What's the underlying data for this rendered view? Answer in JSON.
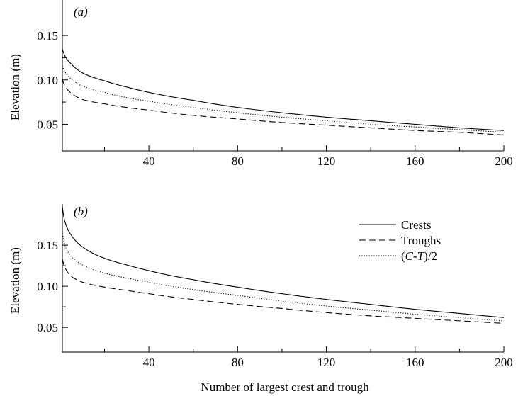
{
  "figure": {
    "xlabel": "Number of largest crest and trough"
  },
  "chart_data": [
    {
      "type": "line",
      "panel_label": "(a)",
      "ylabel": "Elevation (m)",
      "xlabel": "",
      "xlim": [
        1,
        200
      ],
      "ylim": [
        0.02,
        0.19
      ],
      "xticks": [
        40,
        80,
        120,
        160,
        200
      ],
      "xtick_labels": [
        "40",
        "80",
        "120",
        "160",
        "200"
      ],
      "yticks": [
        0.05,
        0.1,
        0.15
      ],
      "ytick_labels": [
        "0.05",
        "0.10",
        "0.15"
      ],
      "grid": false,
      "series": [
        {
          "name": "Crests",
          "style": "solid",
          "x": [
            1,
            2,
            5,
            10,
            20,
            30,
            40,
            60,
            80,
            100,
            120,
            140,
            160,
            180,
            200
          ],
          "y": [
            0.135,
            0.128,
            0.118,
            0.108,
            0.099,
            0.092,
            0.086,
            0.077,
            0.069,
            0.063,
            0.058,
            0.054,
            0.05,
            0.046,
            0.043
          ]
        },
        {
          "name": "Troughs",
          "style": "dashed",
          "x": [
            1,
            2,
            5,
            10,
            20,
            30,
            40,
            60,
            80,
            100,
            120,
            140,
            160,
            180,
            200
          ],
          "y": [
            0.101,
            0.094,
            0.085,
            0.078,
            0.073,
            0.069,
            0.066,
            0.06,
            0.056,
            0.052,
            0.049,
            0.046,
            0.043,
            0.041,
            0.038
          ]
        },
        {
          "name": "(C-T)/2",
          "style": "dotted",
          "x": [
            1,
            2,
            5,
            10,
            20,
            30,
            40,
            60,
            80,
            100,
            120,
            140,
            160,
            180,
            200
          ],
          "y": [
            0.116,
            0.11,
            0.101,
            0.093,
            0.086,
            0.08,
            0.076,
            0.069,
            0.063,
            0.058,
            0.054,
            0.05,
            0.047,
            0.044,
            0.041
          ]
        }
      ]
    },
    {
      "type": "line",
      "panel_label": "(b)",
      "ylabel": "Elevation (m)",
      "xlabel": "Number of largest crest and trough",
      "xlim": [
        1,
        200
      ],
      "ylim": [
        0.02,
        0.2
      ],
      "xticks": [
        40,
        80,
        120,
        160,
        200
      ],
      "xtick_labels": [
        "40",
        "80",
        "120",
        "160",
        "200"
      ],
      "yticks": [
        0.05,
        0.1,
        0.15
      ],
      "ytick_labels": [
        "0.05",
        "0.10",
        "0.15"
      ],
      "grid": false,
      "legend": {
        "placement": "top-right",
        "entries": [
          "Crests",
          "Troughs",
          "(C-T)/2"
        ]
      },
      "series": [
        {
          "name": "Crests",
          "style": "solid",
          "x": [
            1,
            2,
            5,
            10,
            20,
            30,
            40,
            60,
            80,
            100,
            120,
            140,
            160,
            180,
            200
          ],
          "y": [
            0.197,
            0.18,
            0.162,
            0.148,
            0.134,
            0.126,
            0.119,
            0.108,
            0.099,
            0.091,
            0.084,
            0.078,
            0.072,
            0.067,
            0.062
          ]
        },
        {
          "name": "Troughs",
          "style": "dashed",
          "x": [
            1,
            2,
            5,
            10,
            20,
            30,
            40,
            60,
            80,
            100,
            120,
            140,
            160,
            180,
            200
          ],
          "y": [
            0.133,
            0.124,
            0.112,
            0.105,
            0.099,
            0.095,
            0.091,
            0.084,
            0.078,
            0.073,
            0.068,
            0.064,
            0.061,
            0.058,
            0.055
          ]
        },
        {
          "name": "(C-T)/2",
          "style": "dotted",
          "x": [
            1,
            2,
            5,
            10,
            20,
            30,
            40,
            60,
            80,
            100,
            120,
            140,
            160,
            180,
            200
          ],
          "y": [
            0.167,
            0.151,
            0.136,
            0.126,
            0.116,
            0.11,
            0.105,
            0.096,
            0.089,
            0.082,
            0.076,
            0.071,
            0.066,
            0.062,
            0.058
          ]
        }
      ]
    }
  ]
}
